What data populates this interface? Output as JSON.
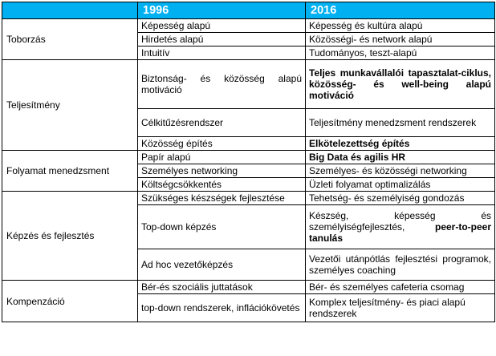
{
  "header": {
    "col1": "",
    "col2": "1996",
    "col3": "2016"
  },
  "categories": {
    "toborzas": "Toborzás",
    "teljesitmeny": "Teljesítmény",
    "folyamat": "Folyamat menedzsment",
    "kepzes": "Képzés és fejlesztés",
    "kompenzacio": "Kompenzáció"
  },
  "rows": {
    "toborzas": [
      {
        "y1996": "Képesség alapú",
        "y2016": "Képesség és kultúra alapú"
      },
      {
        "y1996": "Hirdetés alapú",
        "y2016": "Közösségi- és network alapú"
      },
      {
        "y1996": "Intuitív",
        "y2016": "Tudományos, teszt-alapú"
      }
    ],
    "teljesitmeny": [
      {
        "y1996": "Biztonság- és közösség alapú motiváció",
        "y2016": "Teljes munkavállalói tapasztalat-ciklus, közösség- és well-being alapú motiváció"
      },
      {
        "y1996": "Célkitűzésrendszer",
        "y2016": "Teljesítmény menedzsment rendszerek"
      },
      {
        "y1996": "Közösség építés",
        "y2016": "Elkötelezettség építés"
      }
    ],
    "folyamat": [
      {
        "y1996": "Papír alapú",
        "y2016": "Big Data és agilis HR"
      },
      {
        "y1996": "Személyes networking",
        "y2016": "Személyes- és közösségi networking"
      },
      {
        "y1996": "Költségcsökkentés",
        "y2016": "Üzleti folyamat optimalizálás"
      }
    ],
    "kepzes": [
      {
        "y1996": "Szükséges készségek fejlesztése",
        "y2016": "Tehetség- és személyiség gondozás"
      },
      {
        "y1996": "Top-down képzés",
        "y2016_a": "Készség, képesség és személyiségfejlesztés, ",
        "y2016_b": "peer-to-peer tanulás"
      },
      {
        "y1996": "Ad hoc vezetőképzés",
        "y2016": "Vezetői utánpótlás fejlesztési programok, személyes coaching"
      }
    ],
    "kompenzacio": [
      {
        "y1996": "Bér-és szociális juttatások",
        "y2016": "Bér- és személyes cafeteria csomag"
      },
      {
        "y1996": "top-down rendszerek, inflációkövetés",
        "y2016": "Komplex teljesítmény- és piaci alapú rendszerek"
      }
    ]
  },
  "colors": {
    "header_bg": "#00b0f0",
    "header_text": "#ffffff",
    "border": "#000000"
  }
}
